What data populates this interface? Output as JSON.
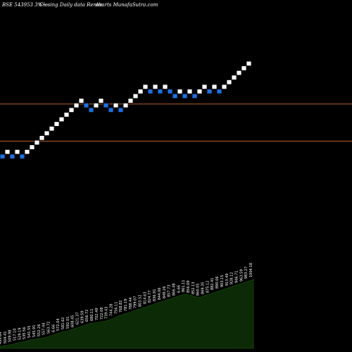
{
  "header": {
    "title": "BSE 543953 3%~",
    "subtitle": "Closing Daily data  Renko",
    "brand": "charts MunafaSutra.com"
  },
  "colors": {
    "background": "#000000",
    "up_brick": "#ffffff",
    "down_brick": "#1e6fe0",
    "level_line": "#b8602a",
    "volume_fill": "#0b2a05",
    "volume_edge": "#1e5a10"
  },
  "chart_data": {
    "type": "renko",
    "title": "BSE 543953 3%~",
    "bricks": [
      {
        "level": 0,
        "dir": "down"
      },
      {
        "level": 1,
        "dir": "up"
      },
      {
        "level": 0,
        "dir": "down"
      },
      {
        "level": 1,
        "dir": "up"
      },
      {
        "level": 0,
        "dir": "down"
      },
      {
        "level": 1,
        "dir": "up"
      },
      {
        "level": 2,
        "dir": "up"
      },
      {
        "level": 3,
        "dir": "up"
      },
      {
        "level": 4,
        "dir": "up"
      },
      {
        "level": 5,
        "dir": "up"
      },
      {
        "level": 6,
        "dir": "up"
      },
      {
        "level": 7,
        "dir": "up"
      },
      {
        "level": 8,
        "dir": "up"
      },
      {
        "level": 9,
        "dir": "up"
      },
      {
        "level": 10,
        "dir": "up"
      },
      {
        "level": 11,
        "dir": "up"
      },
      {
        "level": 12,
        "dir": "up"
      },
      {
        "level": 11,
        "dir": "down"
      },
      {
        "level": 10,
        "dir": "down"
      },
      {
        "level": 11,
        "dir": "up"
      },
      {
        "level": 12,
        "dir": "up"
      },
      {
        "level": 11,
        "dir": "down"
      },
      {
        "level": 10,
        "dir": "down"
      },
      {
        "level": 11,
        "dir": "up"
      },
      {
        "level": 10,
        "dir": "down"
      },
      {
        "level": 11,
        "dir": "up"
      },
      {
        "level": 12,
        "dir": "up"
      },
      {
        "level": 13,
        "dir": "up"
      },
      {
        "level": 14,
        "dir": "up"
      },
      {
        "level": 15,
        "dir": "up"
      },
      {
        "level": 14,
        "dir": "down"
      },
      {
        "level": 15,
        "dir": "up"
      },
      {
        "level": 14,
        "dir": "down"
      },
      {
        "level": 15,
        "dir": "up"
      },
      {
        "level": 14,
        "dir": "down"
      },
      {
        "level": 13,
        "dir": "down"
      },
      {
        "level": 14,
        "dir": "up"
      },
      {
        "level": 13,
        "dir": "down"
      },
      {
        "level": 14,
        "dir": "up"
      },
      {
        "level": 13,
        "dir": "down"
      },
      {
        "level": 14,
        "dir": "up"
      },
      {
        "level": 15,
        "dir": "up"
      },
      {
        "level": 14,
        "dir": "down"
      },
      {
        "level": 15,
        "dir": "up"
      },
      {
        "level": 14,
        "dir": "down"
      },
      {
        "level": 15,
        "dir": "up"
      },
      {
        "level": 16,
        "dir": "up"
      },
      {
        "level": 17,
        "dir": "up"
      },
      {
        "level": 18,
        "dir": "up"
      },
      {
        "level": 19,
        "dir": "up"
      },
      {
        "level": 20,
        "dir": "up"
      }
    ],
    "reference_levels": [
      11.3,
      3.3
    ],
    "volume_heights": [
      3,
      4,
      5,
      6,
      8,
      9,
      10,
      12,
      13,
      14,
      15,
      16,
      18,
      20,
      22,
      24,
      25,
      27,
      29,
      31,
      33,
      35,
      36,
      37,
      38,
      39,
      41,
      43,
      46,
      48,
      50,
      52,
      54,
      56,
      58,
      60,
      62,
      64,
      66,
      68,
      70,
      72,
      74,
      76,
      77,
      76,
      74,
      72,
      74,
      76,
      78,
      80,
      82,
      84,
      86,
      88,
      90,
      92,
      94,
      96,
      98
    ],
    "volume_labels": [
      "499.64",
      "504.41",
      "509.98",
      "517.10",
      "529.19",
      "535.56",
      "541.55",
      "545.91",
      "552.26",
      "557.44",
      "563.72",
      "6.66",
      "572.04",
      "581.62",
      "592.01",
      "608.45",
      "621.37",
      "639.59",
      "656.72",
      "680.11",
      "702.49",
      "722.08",
      "739.43",
      "744.28",
      "756.11",
      "768.82",
      "781.19",
      "788.44",
      "799.07",
      "803.52",
      "814.63",
      "824.77",
      "836.91",
      "844.06",
      "849.26",
      "857.73",
      "866.48",
      "6.66",
      "861.11",
      "856.09",
      "852.13",
      "860.05",
      "869.35",
      "875.12",
      "882.41",
      "890.06",
      "903.15",
      "913.49",
      "928.12",
      "946.71",
      "963.59",
      "983.27",
      "1004.18"
    ]
  }
}
